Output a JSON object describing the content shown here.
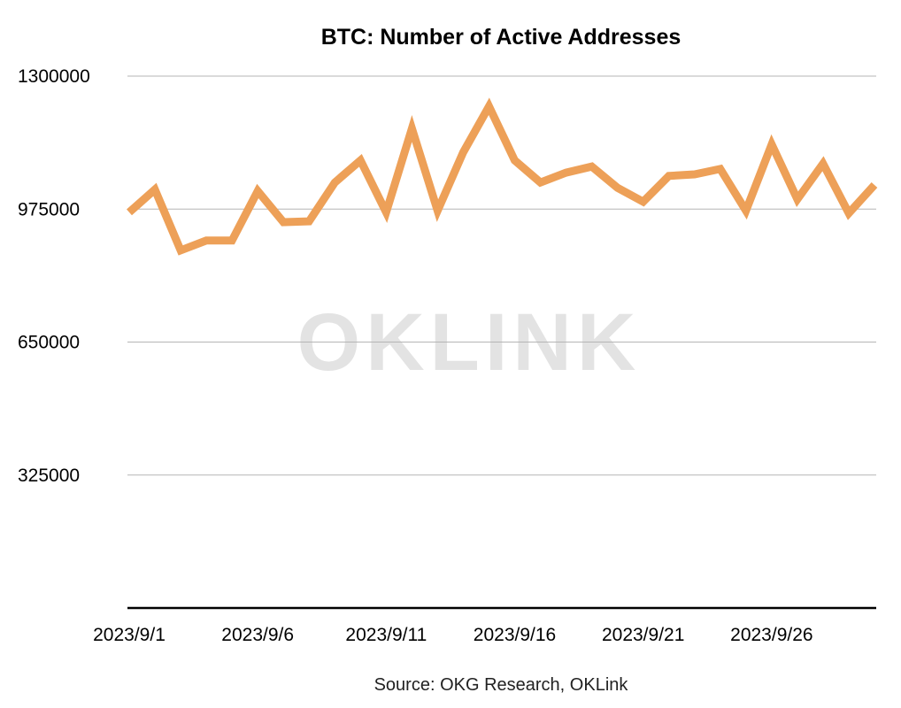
{
  "chart_data": {
    "type": "line",
    "title": "BTC: Number of Active Addresses",
    "source": "Source: OKG Research, OKLink",
    "watermark": "OKLINK",
    "x": [
      "2023/9/1",
      "2023/9/2",
      "2023/9/3",
      "2023/9/4",
      "2023/9/5",
      "2023/9/6",
      "2023/9/7",
      "2023/9/8",
      "2023/9/9",
      "2023/9/10",
      "2023/9/11",
      "2023/9/12",
      "2023/9/13",
      "2023/9/14",
      "2023/9/15",
      "2023/9/16",
      "2023/9/17",
      "2023/9/18",
      "2023/9/19",
      "2023/9/20",
      "2023/9/21",
      "2023/9/22",
      "2023/9/23",
      "2023/9/24",
      "2023/9/25",
      "2023/9/26",
      "2023/9/27",
      "2023/9/28",
      "2023/9/29",
      "2023/9/30"
    ],
    "x_tick_labels": [
      "2023/9/1",
      "2023/9/6",
      "2023/9/11",
      "2023/9/16",
      "2023/9/21",
      "2023/9/26"
    ],
    "series": [
      {
        "values": [
          967000,
          1023000,
          874000,
          898000,
          898000,
          1019000,
          943000,
          945000,
          1040000,
          1094000,
          967000,
          1172000,
          971000,
          1114000,
          1226000,
          1094000,
          1040000,
          1064000,
          1079000,
          1027000,
          993000,
          1056000,
          1060000,
          1073000,
          971000,
          1133000,
          999000,
          1086000,
          965000,
          1034000
        ],
        "color": "#eda058"
      }
    ],
    "y_ticks": [
      "325000",
      "650000",
      "975000",
      "1300000"
    ],
    "ylim": [
      0,
      1300000
    ],
    "grid": true,
    "legend": "none"
  }
}
